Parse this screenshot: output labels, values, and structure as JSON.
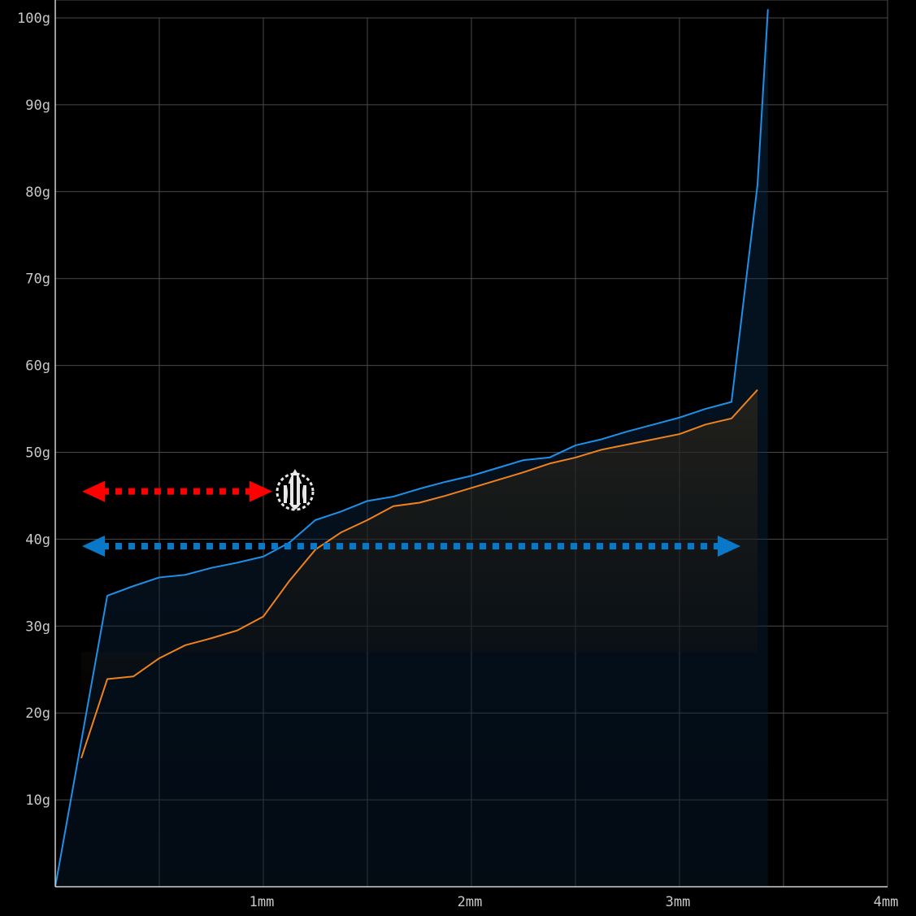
{
  "chart_data": {
    "type": "line",
    "title": "",
    "xlabel": "",
    "ylabel": "",
    "xlim": [
      0,
      4
    ],
    "ylim": [
      0,
      100
    ],
    "grid": true,
    "x_ticks": [
      {
        "value": 1,
        "label": "1mm"
      },
      {
        "value": 2,
        "label": "2mm"
      },
      {
        "value": 3,
        "label": "3mm"
      },
      {
        "value": 4,
        "label": "4mm"
      }
    ],
    "y_ticks": [
      {
        "value": 10,
        "label": "10g"
      },
      {
        "value": 20,
        "label": "20g"
      },
      {
        "value": 30,
        "label": "30g"
      },
      {
        "value": 40,
        "label": "40g"
      },
      {
        "value": 50,
        "label": "50g"
      },
      {
        "value": 60,
        "label": "60g"
      },
      {
        "value": 70,
        "label": "70g"
      },
      {
        "value": 80,
        "label": "80g"
      },
      {
        "value": 90,
        "label": "90g"
      },
      {
        "value": 100,
        "label": "100g"
      }
    ],
    "series": [
      {
        "color": "#1e90e8",
        "x": [
          0,
          0.25,
          0.375,
          0.5,
          0.625,
          0.75,
          0.875,
          1.0,
          1.125,
          1.25,
          1.375,
          1.5,
          1.625,
          1.75,
          1.875,
          2.0,
          2.125,
          2.25,
          2.375,
          2.5,
          2.625,
          2.75,
          2.875,
          3.0,
          3.125,
          3.25,
          3.375,
          3.425
        ],
        "y": [
          0,
          33.5,
          34.6,
          35.6,
          35.9,
          36.7,
          37.3,
          38.0,
          39.6,
          42.2,
          43.2,
          44.4,
          44.9,
          45.8,
          46.6,
          47.3,
          48.2,
          49.1,
          49.4,
          50.8,
          51.5,
          52.4,
          53.2,
          54.0,
          55.0,
          55.8,
          80.8,
          101.0
        ]
      },
      {
        "color": "#f0821e",
        "x": [
          0.125,
          0.25,
          0.375,
          0.5,
          0.625,
          0.75,
          0.875,
          1.0,
          1.125,
          1.25,
          1.375,
          1.5,
          1.625,
          1.75,
          1.875,
          2.0,
          2.125,
          2.25,
          2.375,
          2.5,
          2.625,
          2.75,
          2.875,
          3.0,
          3.125,
          3.25,
          3.375
        ],
        "y": [
          14.8,
          23.9,
          24.2,
          26.3,
          27.8,
          28.6,
          29.5,
          31.1,
          35.2,
          38.8,
          40.8,
          42.2,
          43.8,
          44.2,
          45.0,
          45.9,
          46.8,
          47.7,
          48.7,
          49.4,
          50.3,
          50.9,
          51.5,
          52.1,
          53.2,
          53.9,
          57.2
        ]
      }
    ],
    "annotations": [
      {
        "name": "red-travel-arrow",
        "color": "#ff0000",
        "y": 45.5,
        "x_start": 0.25,
        "x_end": 1.0
      },
      {
        "name": "blue-travel-arrow",
        "color": "#0a78c8",
        "y": 39.2,
        "x_start": 0.25,
        "x_end": 3.25
      }
    ],
    "watermark_icon": "logo-icon"
  }
}
